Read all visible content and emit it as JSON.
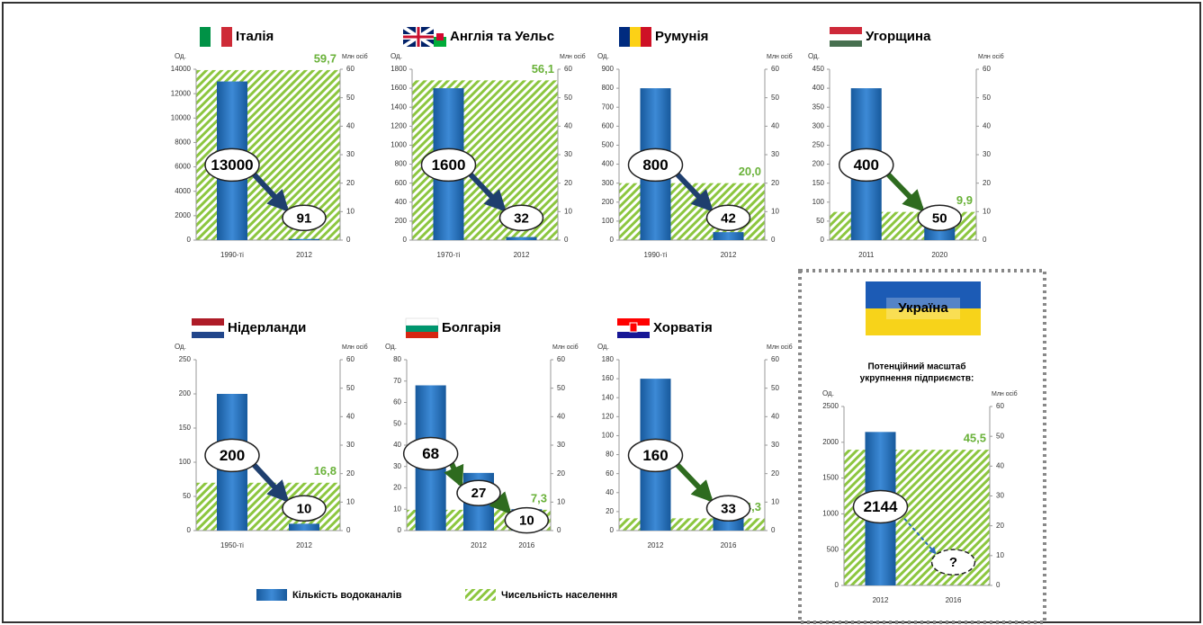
{
  "chart_data": [
    {
      "type": "bar",
      "title": "Італія",
      "ylabel": "Од.",
      "y2label": "Млн осіб",
      "categories": [
        "1990-ті",
        "2012"
      ],
      "values": [
        13000,
        91
      ],
      "population": 59.7,
      "population_label": "59,7",
      "ylim": [
        0,
        14000
      ],
      "yticks": [
        0,
        2000,
        4000,
        6000,
        8000,
        10000,
        12000,
        14000
      ],
      "y2lim": [
        0,
        60
      ],
      "y2ticks": [
        0,
        10,
        20,
        30,
        40,
        50,
        60
      ],
      "arrow_color": "#1f3f6e"
    },
    {
      "type": "bar",
      "title": "Англія та Уельс",
      "ylabel": "Од.",
      "y2label": "Млн осіб",
      "categories": [
        "1970-ті",
        "2012"
      ],
      "values": [
        1600,
        32
      ],
      "population": 56.1,
      "population_label": "56,1",
      "ylim": [
        0,
        1800
      ],
      "yticks": [
        0,
        200,
        400,
        600,
        800,
        1000,
        1200,
        1400,
        1600,
        1800
      ],
      "y2lim": [
        0,
        60
      ],
      "y2ticks": [
        0,
        10,
        20,
        30,
        40,
        50,
        60
      ],
      "arrow_color": "#1f3f6e"
    },
    {
      "type": "bar",
      "title": "Румунія",
      "ylabel": "Од.",
      "y2label": "Млн осіб",
      "categories": [
        "1990-ті",
        "2012"
      ],
      "values": [
        800,
        42
      ],
      "population": 20,
      "population_label": "20,0",
      "ylim": [
        0,
        900
      ],
      "yticks": [
        0,
        100,
        200,
        300,
        400,
        500,
        600,
        700,
        800,
        900
      ],
      "y2lim": [
        0,
        60
      ],
      "y2ticks": [
        0,
        10,
        20,
        30,
        40,
        50,
        60
      ],
      "arrow_color": "#1f3f6e"
    },
    {
      "type": "bar",
      "title": "Угорщина",
      "ylabel": "Од.",
      "y2label": "Млн осіб",
      "categories": [
        "2011",
        "2020"
      ],
      "values": [
        400,
        50
      ],
      "population": 9.9,
      "population_label": "9,9",
      "ylim": [
        0,
        450
      ],
      "yticks": [
        0,
        50,
        100,
        150,
        200,
        250,
        300,
        350,
        400,
        450
      ],
      "y2lim": [
        0,
        60
      ],
      "y2ticks": [
        0,
        10,
        20,
        30,
        40,
        50,
        60
      ],
      "arrow_color": "#2e6b1f"
    },
    {
      "type": "bar",
      "title": "Нідерланди",
      "ylabel": "Од.",
      "y2label": "Млн осіб",
      "categories": [
        "1950-ті",
        "2012"
      ],
      "values": [
        200,
        10
      ],
      "population": 16.8,
      "population_label": "16,8",
      "ylim": [
        0,
        250
      ],
      "yticks": [
        0,
        50,
        100,
        150,
        200,
        250
      ],
      "y2lim": [
        0,
        60
      ],
      "y2ticks": [
        0,
        10,
        20,
        30,
        40,
        50,
        60
      ],
      "arrow_color": "#1f3f6e"
    },
    {
      "type": "bar",
      "title": "Болгарія",
      "ylabel": "Од.",
      "y2label": "Млн осіб",
      "categories": [
        null,
        "2012",
        "2016"
      ],
      "values": [
        68,
        27,
        10
      ],
      "population": 7.3,
      "population_label": "7,3",
      "ylim": [
        0,
        80
      ],
      "yticks": [
        0,
        10,
        20,
        30,
        40,
        50,
        60,
        70,
        80
      ],
      "y2lim": [
        0,
        60
      ],
      "y2ticks": [
        0,
        10,
        20,
        30,
        40,
        50,
        60
      ],
      "arrow_color": "#2e6b1f"
    },
    {
      "type": "bar",
      "title": "Хорватія",
      "ylabel": "Од.",
      "y2label": "Млн осіб",
      "categories": [
        "2012",
        "2016"
      ],
      "values": [
        160,
        33
      ],
      "population": 4.3,
      "population_label": "4,3",
      "ylim": [
        0,
        180
      ],
      "yticks": [
        0,
        20,
        40,
        60,
        80,
        100,
        120,
        140,
        160,
        180
      ],
      "y2lim": [
        0,
        60
      ],
      "y2ticks": [
        0,
        10,
        20,
        30,
        40,
        50,
        60
      ],
      "arrow_color": "#2e6b1f"
    },
    {
      "type": "bar",
      "title": "Україна",
      "subtitle": [
        "Потенційний масштаб",
        "укрупнення підприємств:"
      ],
      "ylabel": "Од.",
      "y2label": "Млн осіб",
      "categories": [
        "2012",
        "2016"
      ],
      "values": [
        2144,
        null
      ],
      "value_labels": [
        "2144",
        "?"
      ],
      "population": 45.5,
      "population_label": "45,5",
      "ylim": [
        0,
        2500
      ],
      "yticks": [
        0,
        500,
        1000,
        1500,
        2000,
        2500
      ],
      "y2lim": [
        0,
        60
      ],
      "y2ticks": [
        0,
        10,
        20,
        30,
        40,
        50,
        60
      ],
      "arrow_color": "#2f6fb8"
    }
  ],
  "legend": [
    {
      "name": "Кількість водоканалів",
      "color": "#1f6fb8"
    },
    {
      "name": "Чисельність населення",
      "color": "#8cc63f"
    }
  ]
}
